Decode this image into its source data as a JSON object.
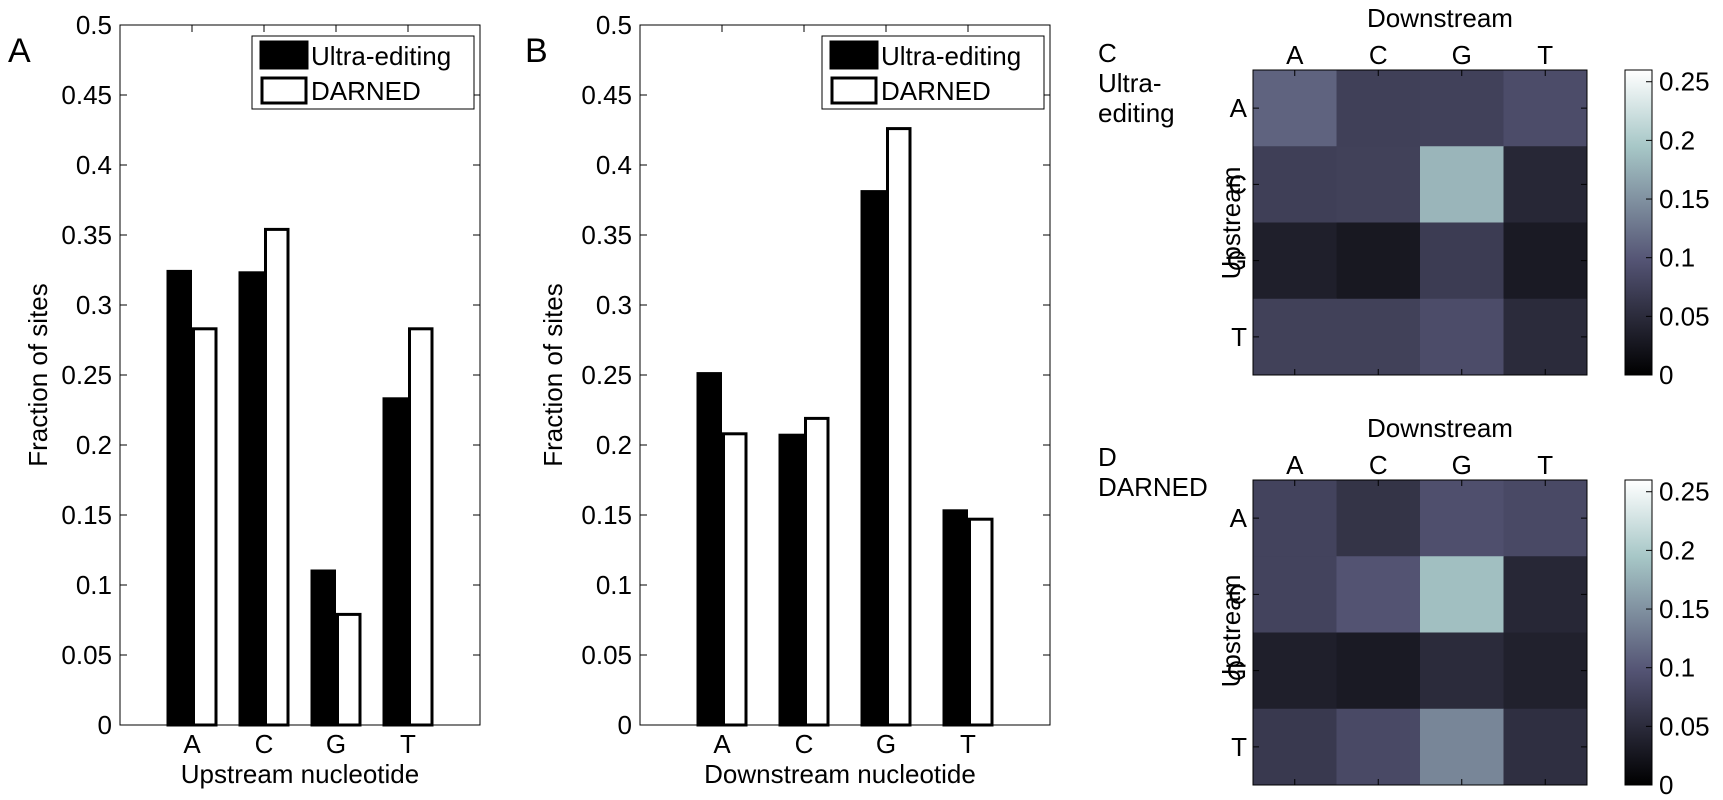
{
  "chart_data": [
    {
      "panel": "A",
      "type": "bar",
      "categories": [
        "A",
        "C",
        "G",
        "T"
      ],
      "series": [
        {
          "name": "Ultra-editing",
          "values": [
            0.324,
            0.323,
            0.11,
            0.233
          ]
        },
        {
          "name": "DARNED",
          "values": [
            0.283,
            0.354,
            0.079,
            0.283
          ]
        }
      ],
      "xlabel": "Upstream nucleotide",
      "ylabel": "Fraction of sites",
      "ylim": [
        0,
        0.5
      ],
      "yticks": [
        "0",
        "0.05",
        "0.1",
        "0.15",
        "0.2",
        "0.25",
        "0.3",
        "0.35",
        "0.4",
        "0.45",
        "0.5"
      ],
      "legend_placement": "top-right",
      "grid": false
    },
    {
      "panel": "B",
      "type": "bar",
      "categories": [
        "A",
        "C",
        "G",
        "T"
      ],
      "series": [
        {
          "name": "Ultra-editing",
          "values": [
            0.251,
            0.207,
            0.381,
            0.153
          ]
        },
        {
          "name": "DARNED",
          "values": [
            0.208,
            0.219,
            0.426,
            0.147
          ]
        }
      ],
      "xlabel": "Downstream nucleotide",
      "ylabel": "Fraction of sites",
      "ylim": [
        0,
        0.5
      ],
      "yticks": [
        "0",
        "0.05",
        "0.1",
        "0.15",
        "0.2",
        "0.25",
        "0.3",
        "0.35",
        "0.4",
        "0.45",
        "0.5"
      ],
      "legend_placement": "top-right",
      "grid": false
    },
    {
      "panel": "C",
      "title": "Ultra-\nediting",
      "type": "heatmap",
      "xlabel": "Downstream",
      "ylabel": "Upstream",
      "xcategories": [
        "A",
        "C",
        "G",
        "T"
      ],
      "ycategories": [
        "A",
        "C",
        "G",
        "T"
      ],
      "values": [
        [
          0.11,
          0.074,
          0.076,
          0.088
        ],
        [
          0.073,
          0.075,
          0.18,
          0.045
        ],
        [
          0.036,
          0.028,
          0.07,
          0.03
        ],
        [
          0.075,
          0.075,
          0.088,
          0.05
        ]
      ],
      "clim": [
        0,
        0.26
      ],
      "colorbar_ticks": [
        "0",
        "0.05",
        "0.1",
        "0.15",
        "0.2",
        "0.25"
      ],
      "colormap": "bone"
    },
    {
      "panel": "D",
      "title": "DARNED",
      "type": "heatmap",
      "xlabel": "Downstream",
      "ylabel": "Upstream",
      "xcategories": [
        "A",
        "C",
        "G",
        "T"
      ],
      "ycategories": [
        "A",
        "C",
        "G",
        "T"
      ],
      "values": [
        [
          0.078,
          0.06,
          0.092,
          0.085
        ],
        [
          0.078,
          0.096,
          0.188,
          0.045
        ],
        [
          0.036,
          0.03,
          0.05,
          0.038
        ],
        [
          0.066,
          0.085,
          0.14,
          0.055
        ]
      ],
      "clim": [
        0,
        0.26
      ],
      "colorbar_ticks": [
        "0",
        "0.05",
        "0.1",
        "0.15",
        "0.2",
        "0.25"
      ],
      "colormap": "bone"
    }
  ],
  "colors": {
    "ultra_editing_fill": "#000000",
    "darned_fill": "#ffffff",
    "bar_stroke": "#000000",
    "axis": "#000000"
  }
}
